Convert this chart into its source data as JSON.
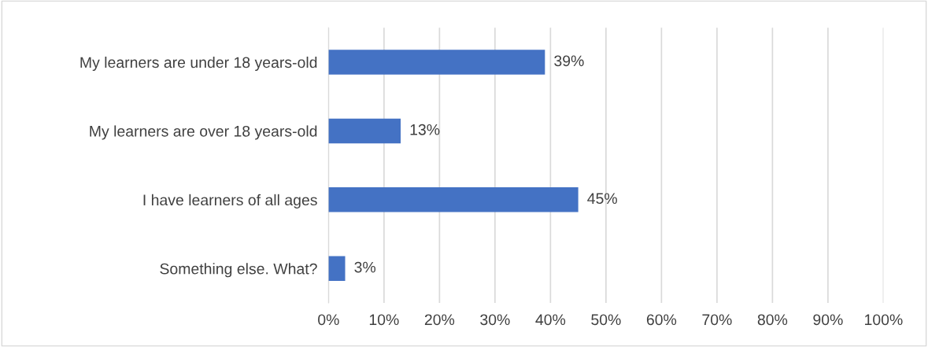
{
  "chart_data": {
    "type": "bar",
    "orientation": "horizontal",
    "categories": [
      "My learners are under 18 years-old",
      "My learners are over 18 years-old",
      "I have learners of all ages",
      "Something else. What?"
    ],
    "values": [
      39,
      13,
      45,
      3
    ],
    "value_labels": [
      "39%",
      "13%",
      "45%",
      "3%"
    ],
    "color": "#4472c4",
    "xlim": [
      0,
      100
    ],
    "xticks": [
      {
        "value": 0,
        "label": "0%"
      },
      {
        "value": 10,
        "label": "10%"
      },
      {
        "value": 20,
        "label": "20%"
      },
      {
        "value": 30,
        "label": "30%"
      },
      {
        "value": 40,
        "label": "40%"
      },
      {
        "value": 50,
        "label": "50%"
      },
      {
        "value": 60,
        "label": "60%"
      },
      {
        "value": 70,
        "label": "70%"
      },
      {
        "value": 80,
        "label": "80%"
      },
      {
        "value": 90,
        "label": "90%"
      },
      {
        "value": 100,
        "label": "100%"
      }
    ],
    "grid": "x",
    "legend": false
  }
}
